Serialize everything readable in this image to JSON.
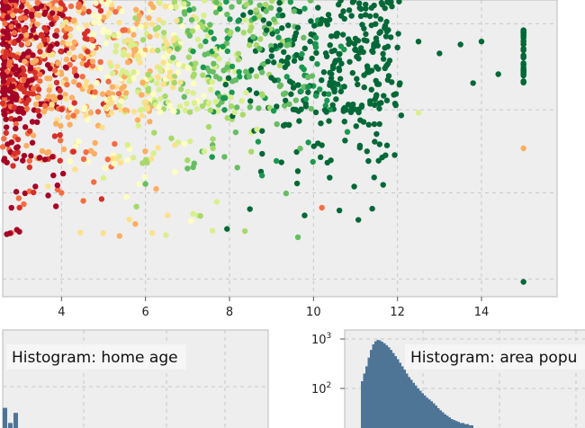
{
  "colors": {
    "panel_bg": "#eeeeee",
    "grid": "#c8c8c8",
    "hist_fill": "#4e7496",
    "scale": [
      "#a50026",
      "#d73027",
      "#f46d43",
      "#fdae61",
      "#fee08b",
      "#ffffbf",
      "#d9ef8b",
      "#a6d96a",
      "#66bd63",
      "#1a9850",
      "#006837"
    ]
  },
  "chart_data": [
    {
      "type": "scatter",
      "title": "",
      "xlabel": "",
      "ylabel": "",
      "xlim": [
        2.6,
        15.8
      ],
      "ylim": [
        0,
        1
      ],
      "grid": true,
      "x_ticks": [
        "4",
        "6",
        "8",
        "10",
        "12",
        "14"
      ],
      "x_tick_values": [
        4,
        6,
        8,
        10,
        12,
        14
      ],
      "color_scale": "red-yellow-green (low to high)",
      "series": [
        {
          "points": [
            [
              2.8,
              0.95,
              0.05
            ],
            [
              3.0,
              0.9,
              0.1
            ],
            [
              3.2,
              0.85,
              0.15
            ],
            [
              3.5,
              0.8,
              0.2
            ],
            [
              3.8,
              0.92,
              0.3
            ],
            [
              4.2,
              0.88,
              0.35
            ],
            [
              4.6,
              0.83,
              0.4
            ],
            [
              5.0,
              0.9,
              0.5
            ],
            [
              5.5,
              0.86,
              0.55
            ],
            [
              6.0,
              0.91,
              0.62
            ],
            [
              6.5,
              0.84,
              0.68
            ],
            [
              7.0,
              0.89,
              0.74
            ],
            [
              7.5,
              0.82,
              0.8
            ],
            [
              8.0,
              0.88,
              0.85
            ],
            [
              8.5,
              0.86,
              0.88
            ],
            [
              9.0,
              0.9,
              0.92
            ],
            [
              9.5,
              0.85,
              0.95
            ],
            [
              10.0,
              0.88,
              0.97
            ],
            [
              10.5,
              0.83,
              0.98
            ],
            [
              11.0,
              0.87,
              0.98
            ],
            [
              11.5,
              0.86,
              0.99
            ],
            [
              12.0,
              0.84,
              0.99
            ],
            [
              12.5,
              0.86,
              1.0
            ],
            [
              13.0,
              0.82,
              1.0
            ],
            [
              13.5,
              0.85,
              1.0
            ],
            [
              14.0,
              0.86,
              1.0
            ],
            [
              15.0,
              0.88,
              1.0
            ],
            [
              15.0,
              0.5,
              0.3
            ],
            [
              15.0,
              0.05,
              1.0
            ],
            [
              3.0,
              0.3,
              0.1
            ],
            [
              4.0,
              0.35,
              0.2
            ],
            [
              5.0,
              0.4,
              0.6
            ],
            [
              6.0,
              0.38,
              0.8
            ],
            [
              7.7,
              0.32,
              0.6
            ],
            [
              10.2,
              0.3,
              0.15
            ],
            [
              2.8,
              0.6,
              0.1
            ],
            [
              3.5,
              0.65,
              0.2
            ],
            [
              4.5,
              0.7,
              0.3
            ],
            [
              5.5,
              0.68,
              0.55
            ],
            [
              6.5,
              0.72,
              0.7
            ],
            [
              7.5,
              0.74,
              0.85
            ],
            [
              8.5,
              0.76,
              0.9
            ],
            [
              9.5,
              0.72,
              0.95
            ],
            [
              10.5,
              0.7,
              0.98
            ],
            [
              11.5,
              0.68,
              0.99
            ],
            [
              12.5,
              0.62,
              0.6
            ],
            [
              13.8,
              0.72,
              1.0
            ],
            [
              14.4,
              0.75,
              1.0
            ],
            [
              3.2,
              0.55,
              0.15
            ],
            [
              4.2,
              0.58,
              0.25
            ]
          ],
          "note_dims": [
            "x",
            "y (normalized)",
            "color value 0-1"
          ]
        }
      ]
    },
    {
      "type": "bar",
      "title": "Histogram: home age",
      "xlabel": "",
      "ylabel": "",
      "grid": true,
      "values": [
        4,
        1,
        3
      ]
    },
    {
      "type": "bar",
      "title": "Histogram: area popu",
      "xlabel": "",
      "ylabel": "",
      "yscale": "log",
      "y_ticks": [
        "10",
        "10"
      ],
      "y_tick_exponents": [
        "3",
        "2"
      ],
      "grid": true,
      "values": [
        140,
        200,
        280,
        420,
        600,
        780,
        900,
        960,
        940,
        880,
        820,
        750,
        680,
        600,
        520,
        450,
        390,
        330,
        280,
        240,
        200,
        170,
        150,
        130,
        115,
        100,
        90,
        80,
        72,
        65,
        60,
        55,
        50,
        45,
        40,
        36,
        33,
        30,
        28,
        26,
        24,
        23,
        22,
        21,
        20,
        20,
        19,
        19,
        18,
        18
      ]
    }
  ]
}
